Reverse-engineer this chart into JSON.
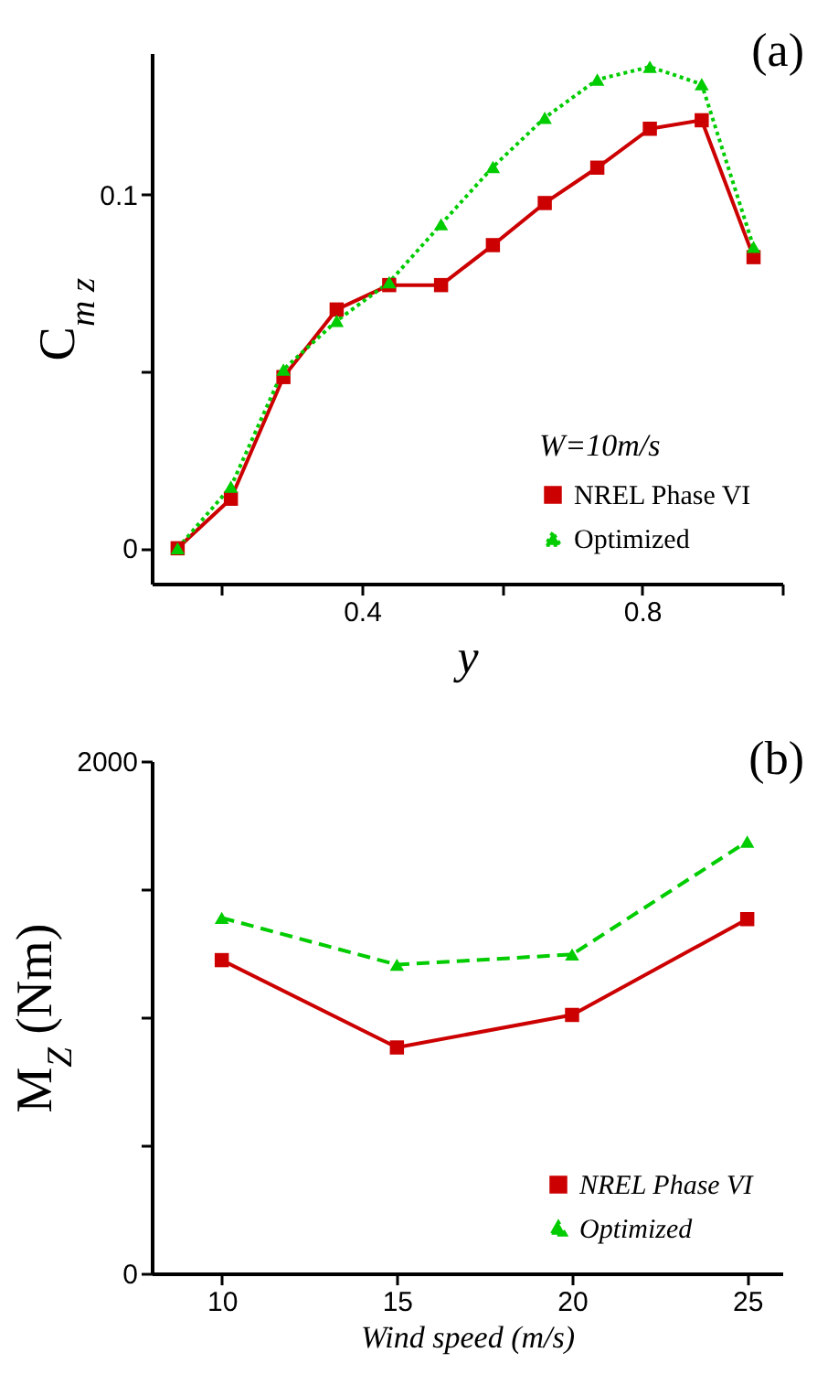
{
  "chart_data": [
    {
      "type": "line",
      "xlabel": "y",
      "ylabel": "C$_{m z}$",
      "legend_title": "W=10m/s",
      "annotations": [
        "(a)"
      ],
      "x": [
        0.137,
        0.213,
        0.288,
        0.364,
        0.439,
        0.513,
        0.587,
        0.661,
        0.736,
        0.811,
        0.885,
        0.959
      ],
      "series": [
        {
          "name": "NREL Phase VI",
          "color": "#cc0000",
          "marker": "square",
          "line_style": "solid",
          "values": [
            0,
            0.014,
            0.0484,
            0.0675,
            0.0744,
            0.0744,
            0.0857,
            0.0976,
            0.1076,
            0.1186,
            0.121,
            0.0823
          ]
        },
        {
          "name": "Optimized",
          "color": "#00cc00",
          "marker": "triangle",
          "line_style": "dotted",
          "values": [
            0,
            0.0174,
            0.0505,
            0.0643,
            0.0752,
            0.0916,
            0.1078,
            0.1217,
            0.1325,
            0.1361,
            0.1312,
            0.0852
          ]
        }
      ],
      "xlim": [
        0.1,
        1.0
      ],
      "xticks": [
        {
          "value": 0.2,
          "label": null
        },
        0.4,
        {
          "value": 0.6,
          "label": null
        },
        0.8,
        {
          "value": 1.0,
          "label": null
        }
      ],
      "ylim": [
        -0.01,
        0.14
      ],
      "yticks": [
        0,
        {
          "value": 0.05,
          "label": null
        },
        0.1
      ],
      "grid": false,
      "legend": "bottom right"
    },
    {
      "type": "line",
      "xlabel": "Wind speed (m/s)",
      "ylabel": "M$_{Z}$ (Nm)",
      "annotations": [
        "(b)"
      ],
      "x": [
        10,
        15,
        20,
        25
      ],
      "series": [
        {
          "name": "NREL Phase VI",
          "color": "#cc0000",
          "marker": "square",
          "line_style": "solid",
          "values": [
            1223,
            882,
            1009,
            1383
          ]
        },
        {
          "name": "Optimized",
          "color": "#00cc00",
          "marker": "triangle",
          "line_style": "dashed",
          "values": [
            1388,
            1205,
            1245,
            1686
          ]
        }
      ],
      "xlim": [
        8,
        26
      ],
      "xticks": [
        10,
        15,
        20,
        25
      ],
      "ylim": [
        0,
        2000
      ],
      "yticks": [
        0,
        {
          "value": 500,
          "label": null
        },
        {
          "value": 1000,
          "label": null
        },
        {
          "value": 1500,
          "label": null
        },
        2000
      ],
      "grid": false,
      "legend": "bottom right"
    }
  ]
}
